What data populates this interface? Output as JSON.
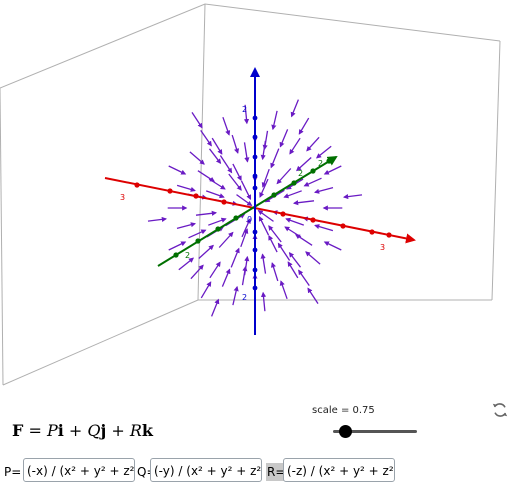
{
  "view": {
    "x_ticks": [
      "3",
      "3"
    ],
    "y_ticks": [
      "2",
      "2",
      "2"
    ],
    "z_ticks": [
      "2",
      "2"
    ],
    "origin_label": "0",
    "colors": {
      "x_axis": "#dd0000",
      "y_axis": "#007000",
      "z_axis": "#0000cc",
      "vector": "#6a1bc4",
      "box": "#b0b0b0"
    }
  },
  "formula": {
    "F": "F",
    "eq": " = ",
    "P": "P",
    "i": "i",
    "plus1": " + ",
    "Q": "Q",
    "j": "j",
    "plus2": " + ",
    "R": "R",
    "k": "k"
  },
  "scale": {
    "label": "scale = 0.75",
    "value": 0.75
  },
  "refresh_icon": "refresh-icon",
  "inputs": {
    "p_label": "P=",
    "p_value": "(-x) / (x² + y² + z²)^",
    "q_label": "Q=",
    "q_value": "(-y) / (x² + y² + z²)^",
    "r_label": "R=",
    "r_value": "(-z) / (x² + y² + z²)^"
  }
}
